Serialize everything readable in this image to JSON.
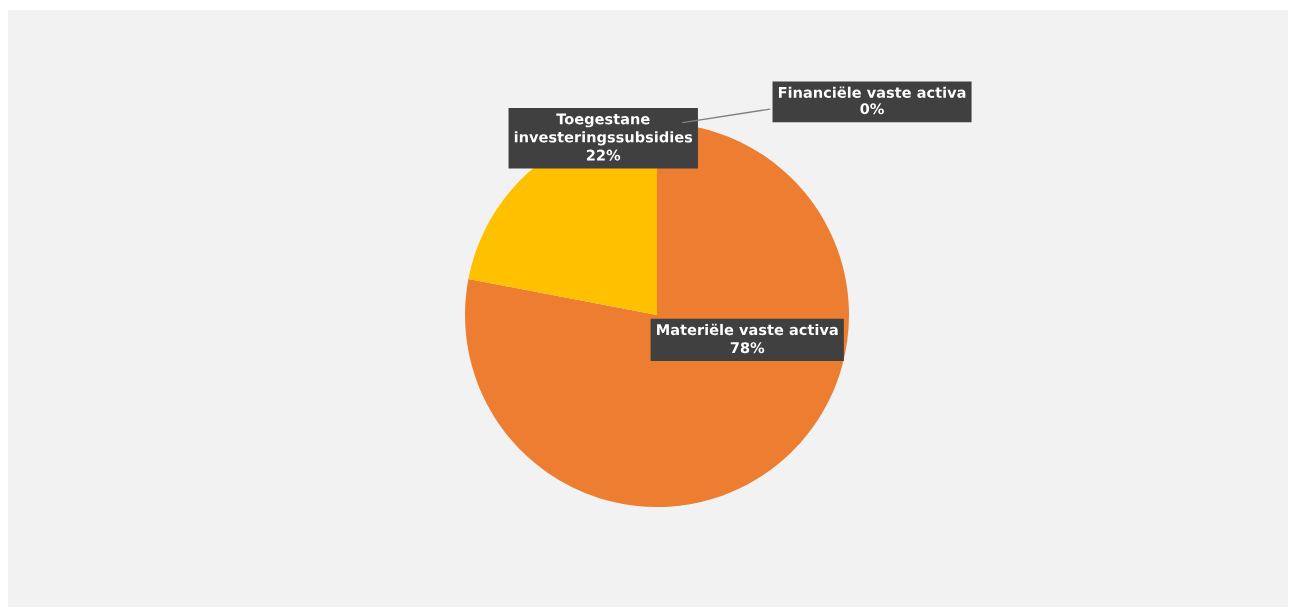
{
  "chart_data": {
    "type": "pie",
    "categories": [
      "Materiële vaste activa",
      "Toegestane investeringssubsidies",
      "Financiële vaste activa"
    ],
    "values": [
      78,
      22,
      0
    ],
    "colors": [
      "#ed7d31",
      "#ffc000",
      "#a5a5a5"
    ],
    "value_labels": [
      "78%",
      "22%",
      "0%"
    ],
    "legend": false
  }
}
